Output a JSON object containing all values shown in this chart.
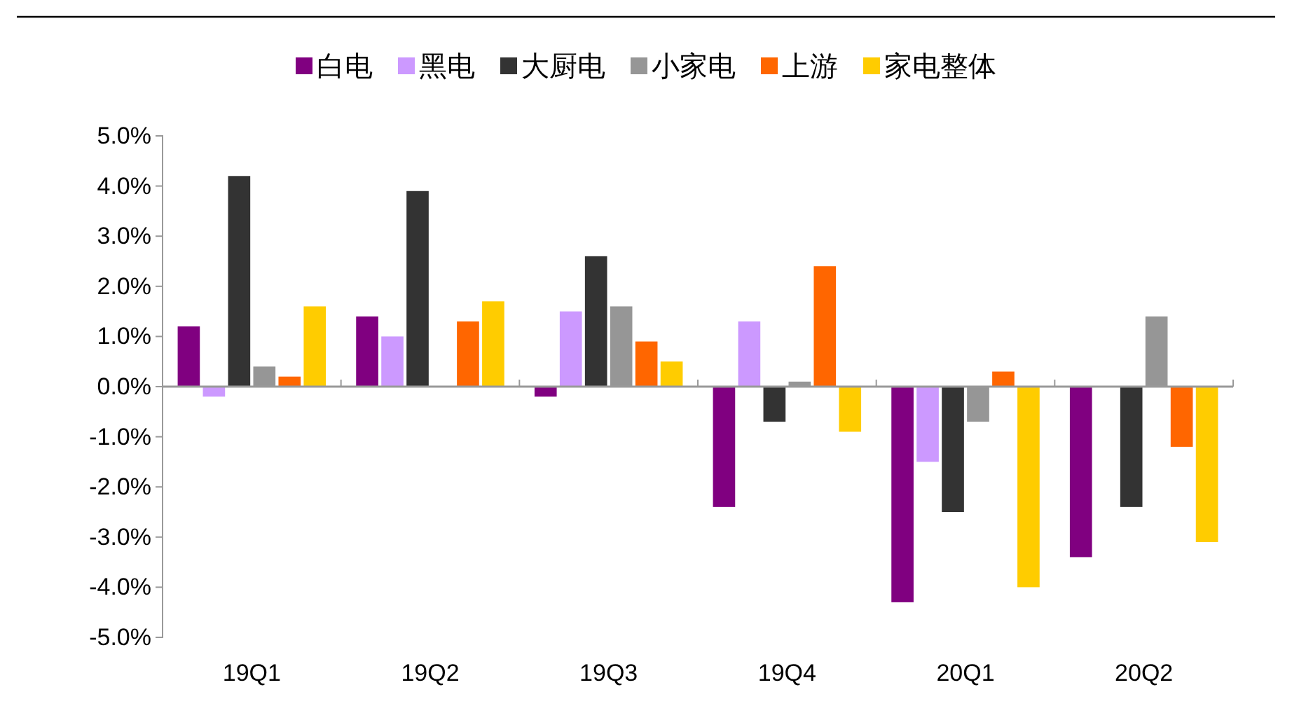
{
  "chart_data": {
    "type": "bar",
    "categories": [
      "19Q1",
      "19Q2",
      "19Q3",
      "19Q4",
      "20Q1",
      "20Q2"
    ],
    "series": [
      {
        "name": "白电",
        "color": "#800080",
        "values": [
          1.2,
          1.4,
          -0.2,
          -2.4,
          -4.3,
          -3.4
        ]
      },
      {
        "name": "黑电",
        "color": "#cc99ff",
        "values": [
          -0.2,
          1.0,
          1.5,
          1.3,
          -1.5,
          0
        ]
      },
      {
        "name": "大厨电",
        "color": "#333333",
        "values": [
          4.2,
          3.9,
          2.6,
          -0.7,
          -2.5,
          -2.4
        ]
      },
      {
        "name": "小家电",
        "color": "#969696",
        "values": [
          0.4,
          0,
          1.6,
          0.1,
          -0.7,
          1.4
        ]
      },
      {
        "name": "上游",
        "color": "#ff6600",
        "values": [
          0.2,
          1.3,
          0.9,
          2.4,
          0.3,
          -1.2
        ]
      },
      {
        "name": "家电整体",
        "color": "#ffcc00",
        "values": [
          1.6,
          1.7,
          0.5,
          -0.9,
          -4.0,
          -3.1
        ]
      }
    ],
    "ylim": [
      -5,
      5
    ],
    "yticks": [
      {
        "value": -5,
        "label": "-5.0%"
      },
      {
        "value": -4,
        "label": "-4.0%"
      },
      {
        "value": -3,
        "label": "-3.0%"
      },
      {
        "value": -2,
        "label": "-2.0%"
      },
      {
        "value": -1,
        "label": "-1.0%"
      },
      {
        "value": 0,
        "label": "0.0%"
      },
      {
        "value": 1,
        "label": "1.0%"
      },
      {
        "value": 2,
        "label": "2.0%"
      },
      {
        "value": 3,
        "label": "3.0%"
      },
      {
        "value": 4,
        "label": "4.0%"
      },
      {
        "value": 5,
        "label": "5.0%"
      }
    ],
    "legend": "top"
  }
}
